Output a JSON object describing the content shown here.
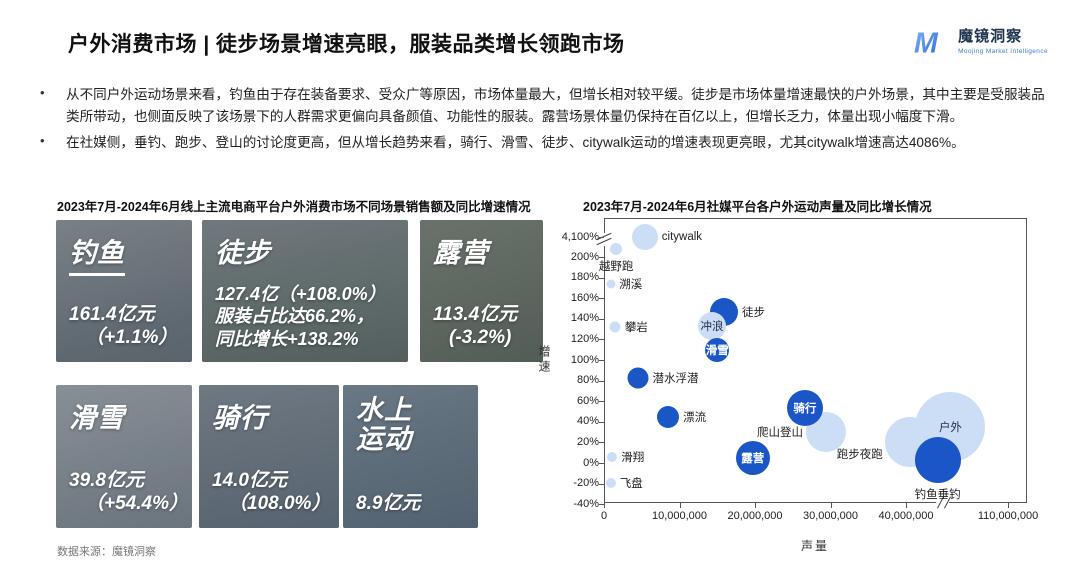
{
  "header": {
    "title": "户外消费市场 | 徒步场景增速亮眼，服装品类增长领跑市场",
    "logo": {
      "mark": "M",
      "brand": "魔镜洞察",
      "subtitle": "Moojing Market Intelligence"
    }
  },
  "bullets": [
    "从不同户外运动场景来看，钓鱼由于存在装备要求、受众广等原因，市场体量最大，但增长相对较平缓。徒步是市场体量增速最快的户外场景，其中主要是受服装品类所带动，也侧面反映了该场景下的人群需求更偏向具备颜值、功能性的服装。露营场景体量仍保持在百亿以上，但增长乏力，体量出现小幅度下滑。",
    "在社媒侧，垂钓、跑步、登山的讨论度更高，但从增长趋势来看，骑行、滑雪、徒步、citywalk运动的增速表现更亮眼，尤其citywalk增速高达4086%。"
  ],
  "left_panel": {
    "title": "2023年7月-2024年6月线上主流电商平台户外消费市场不同场景销售额及同比增速情况",
    "cards": [
      {
        "name": "钓鱼",
        "photo": "fishing",
        "lines": [
          "161.4亿元",
          "（+1.1%）"
        ]
      },
      {
        "name": "徒步",
        "photo": "hiking",
        "lines": [
          "127.4亿（+108.0%）",
          "服装占比达66.2%，",
          "同比增长+138.2%"
        ]
      },
      {
        "name": "露营",
        "photo": "camping",
        "lines": [
          "113.4亿元",
          "(-3.2%)"
        ]
      },
      {
        "name": "滑雪",
        "photo": "skiing",
        "lines": [
          "39.8亿元",
          "（+54.4%）"
        ]
      },
      {
        "name": "骑行",
        "photo": "cycling",
        "lines": [
          "14.0亿元",
          "（108.0%）"
        ]
      },
      {
        "name": "水上运动",
        "photo": "water-sports",
        "lines": [
          "8.9亿元"
        ]
      }
    ],
    "source": "数据来源：魔镜洞察"
  },
  "right_panel": {
    "title": "2023年7月-2024年6月社媒平台各户外运动声量及同比增长情况"
  },
  "chart_data": {
    "type": "scatter",
    "title": "2023年7月-2024年6月社媒平台各户外运动声量及同比增长情况",
    "xlabel": "声量",
    "ylabel": "增速",
    "legend": "none",
    "grid": false,
    "x_axis": {
      "min": 0,
      "break_after": 40000000,
      "max_label": 110000000,
      "tick_format": "thousands-comma"
    },
    "y_axis": {
      "min_pct": -40,
      "linear_max_pct": 200,
      "break_top_pct": 4100,
      "step_pct": 20,
      "unit": "%"
    },
    "y_ticks": [
      {
        "label": "4,100%",
        "v": 4100
      },
      {
        "label": "200%",
        "v": 200
      },
      {
        "label": "180%",
        "v": 180
      },
      {
        "label": "160%",
        "v": 160
      },
      {
        "label": "140%",
        "v": 140
      },
      {
        "label": "120%",
        "v": 120
      },
      {
        "label": "100%",
        "v": 100
      },
      {
        "label": "80%",
        "v": 80
      },
      {
        "label": "60%",
        "v": 60
      },
      {
        "label": "40%",
        "v": 40
      },
      {
        "label": "20%",
        "v": 20
      },
      {
        "label": "0%",
        "v": 0
      },
      {
        "label": "-20%",
        "v": -20
      },
      {
        "label": "-40%",
        "v": -40
      }
    ],
    "x_ticks": [
      {
        "label": "0",
        "v": 0
      },
      {
        "label": "10,000,000",
        "v": 10000000
      },
      {
        "label": "20,000,000",
        "v": 20000000
      },
      {
        "label": "30,000,000",
        "v": 30000000
      },
      {
        "label": "40,000,000",
        "v": 40000000
      },
      {
        "label": "110,000,000",
        "v": 110000000
      }
    ],
    "colors": {
      "dark": "#1a56c6",
      "light": "#cbdef6"
    },
    "points": [
      {
        "name": "越野跑",
        "x": 1600000,
        "y": 208,
        "r": 6,
        "shade": "light",
        "label_pos": "below"
      },
      {
        "name": "citywalk",
        "x": 5400000,
        "y": 4086,
        "r": 13,
        "shade": "light",
        "label_pos": "right"
      },
      {
        "name": "溯溪",
        "x": 900000,
        "y": 174,
        "r": 4.5,
        "shade": "light",
        "label_pos": "right"
      },
      {
        "name": "攀岩",
        "x": 1500000,
        "y": 132,
        "r": 5.5,
        "shade": "light",
        "label_pos": "right"
      },
      {
        "name": "徒步",
        "x": 15900000,
        "y": 147,
        "r": 14,
        "shade": "dark",
        "label_pos": "right"
      },
      {
        "name": "冲浪",
        "x": 14300000,
        "y": 133,
        "r": 14,
        "shade": "light",
        "label_pos": "inside"
      },
      {
        "name": "滑雪",
        "x": 15000000,
        "y": 110,
        "r": 12,
        "shade": "dark",
        "label_pos": "inside"
      },
      {
        "name": "潜水浮潜",
        "x": 4500000,
        "y": 83,
        "r": 10.5,
        "shade": "dark",
        "label_pos": "right"
      },
      {
        "name": "漂流",
        "x": 8500000,
        "y": 45,
        "r": 11,
        "shade": "dark",
        "label_pos": "right"
      },
      {
        "name": "滑翔",
        "x": 1100000,
        "y": 6,
        "r": 5,
        "shade": "light",
        "label_pos": "right"
      },
      {
        "name": "飞盘",
        "x": 900000,
        "y": -19,
        "r": 5,
        "shade": "light",
        "label_pos": "right"
      },
      {
        "name": "露营",
        "x": 19700000,
        "y": 5,
        "r": 17,
        "shade": "dark",
        "label_pos": "inside"
      },
      {
        "name": "爬山登山",
        "x": 29400000,
        "y": 30,
        "r": 20,
        "shade": "light",
        "label_pos": "left"
      },
      {
        "name": "骑行",
        "x": 26600000,
        "y": 53,
        "r": 18,
        "shade": "dark",
        "label_pos": "inside"
      },
      {
        "name": "跑步夜跑",
        "x": 40500000,
        "y": 20,
        "r": 25,
        "shade": "light",
        "label_pos": "left-low"
      },
      {
        "name": "户外",
        "x": 65000000,
        "y": 35,
        "r": 35,
        "shade": "light",
        "label_pos": "inside"
      },
      {
        "name": "钓鱼垂钓",
        "x": 55000000,
        "y": 3,
        "r": 23,
        "shade": "dark",
        "label_pos": "below"
      }
    ]
  }
}
